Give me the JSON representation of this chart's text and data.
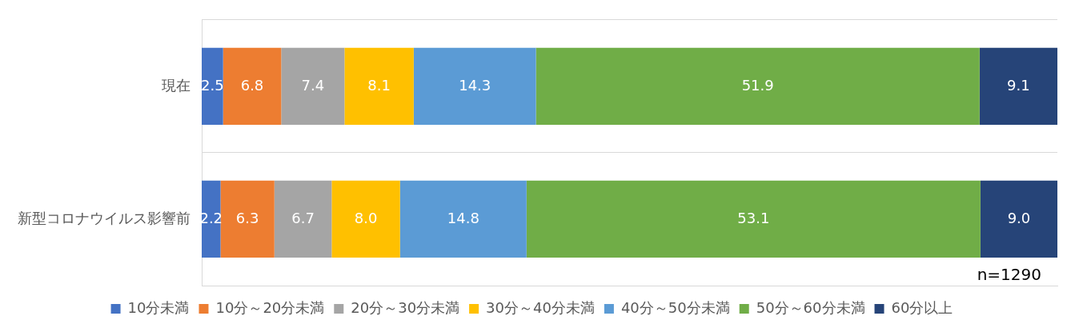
{
  "chart_data": {
    "type": "bar",
    "orientation": "horizontal",
    "stacked": true,
    "categories": [
      "現在",
      "新型コロナウイルス影響前"
    ],
    "series": [
      {
        "name": "10分未満",
        "color": "#4472c4",
        "values": [
          2.5,
          2.2
        ]
      },
      {
        "name": "10分～20分未満",
        "color": "#ed7d31",
        "values": [
          6.8,
          6.3
        ]
      },
      {
        "name": "20分～30分未満",
        "color": "#a5a5a5",
        "values": [
          7.4,
          6.7
        ]
      },
      {
        "name": "30分～40分未満",
        "color": "#ffc000",
        "values": [
          8.1,
          8.0
        ],
        "value_labels": [
          "8.1",
          "8.0"
        ]
      },
      {
        "name": "40分～50分未満",
        "color": "#5b9bd5",
        "values": [
          14.3,
          14.8
        ]
      },
      {
        "name": "50分～60分未満",
        "color": "#70ad47",
        "values": [
          51.9,
          53.1
        ]
      },
      {
        "name": "60分以上",
        "color": "#264478",
        "values": [
          9.1,
          9.0
        ],
        "value_labels": [
          "9.1",
          "9.0"
        ]
      }
    ],
    "xlim": [
      0,
      100.1
    ],
    "tick_labels": "y",
    "data_labels": true,
    "legend": "bottom",
    "grid": "y",
    "annotations": [
      "n=1290"
    ]
  }
}
